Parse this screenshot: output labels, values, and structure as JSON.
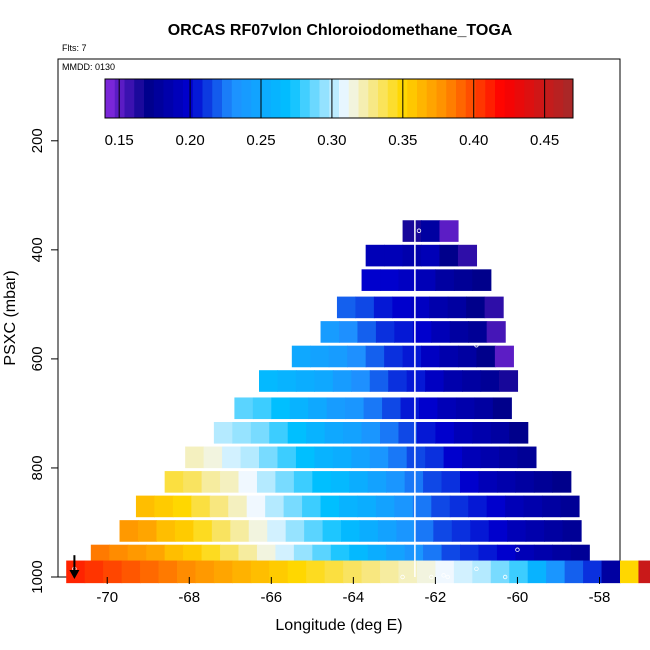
{
  "chart_data": {
    "type": "heatmap",
    "title": "ORCAS RF07vlon Chloroiodomethane_TOGA",
    "flts_label": "Flts: 7",
    "mmdd_label": "MMDD: 0130",
    "xlabel": "Longitude (deg E)",
    "ylabel": "PSXC (mbar)",
    "xlim": [
      -71.2,
      -57.5
    ],
    "ylim": [
      1000,
      50
    ],
    "y_inverted": true,
    "x_ticks": [
      -70,
      -68,
      -66,
      -64,
      -62,
      -60,
      -58
    ],
    "y_ticks": [
      200,
      400,
      600,
      800,
      1000
    ],
    "grid": false,
    "colorbar": {
      "placement": "top-inside",
      "range": [
        0.14,
        0.47
      ],
      "ticks": [
        0.15,
        0.2,
        0.25,
        0.3,
        0.35,
        0.4,
        0.45
      ],
      "tick_labels": [
        "0.15",
        "0.20",
        "0.25",
        "0.30",
        "0.35",
        "0.40",
        "0.45"
      ],
      "stops": [
        {
          "v": 0.14,
          "color": "#8a2be2"
        },
        {
          "v": 0.17,
          "color": "#00008b"
        },
        {
          "v": 0.2,
          "color": "#0000cd"
        },
        {
          "v": 0.23,
          "color": "#1e90ff"
        },
        {
          "v": 0.27,
          "color": "#00bfff"
        },
        {
          "v": 0.31,
          "color": "#f0f8ff"
        },
        {
          "v": 0.35,
          "color": "#ffd700"
        },
        {
          "v": 0.38,
          "color": "#ff8c00"
        },
        {
          "v": 0.42,
          "color": "#ff0000"
        },
        {
          "v": 0.47,
          "color": "#a52a2a"
        }
      ]
    },
    "vertical_line_x": -62.5,
    "ground_marker_x": -70.8,
    "cells": {
      "x_step": 0.45,
      "x_left_edge": -62.8,
      "rows": [
        {
          "p": 365,
          "x_start": -62.8,
          "values": [
            0.165,
            0.18,
            0.15
          ]
        },
        {
          "p": 410,
          "x_start": -63.7,
          "values": [
            0.19,
            0.19,
            0.185,
            0.19,
            0.17,
            0.16
          ]
        },
        {
          "p": 455,
          "x_start": -63.8,
          "values": [
            0.2,
            0.2,
            0.195,
            0.19,
            0.18,
            0.175,
            0.17
          ]
        },
        {
          "p": 505,
          "x_start": -64.4,
          "values": [
            0.22,
            0.215,
            0.205,
            0.2,
            0.195,
            0.185,
            0.18,
            0.17,
            0.16
          ]
        },
        {
          "p": 550,
          "x_start": -64.8,
          "values": [
            0.24,
            0.23,
            0.22,
            0.21,
            0.205,
            0.2,
            0.19,
            0.18,
            0.175,
            0.155
          ]
        },
        {
          "p": 595,
          "x_start": -65.5,
          "values": [
            0.25,
            0.245,
            0.24,
            0.23,
            0.22,
            0.21,
            0.205,
            0.195,
            0.185,
            0.18,
            0.17,
            0.15
          ]
        },
        {
          "p": 640,
          "x_start": -66.3,
          "values": [
            0.265,
            0.26,
            0.255,
            0.25,
            0.24,
            0.23,
            0.22,
            0.21,
            0.205,
            0.195,
            0.185,
            0.18,
            0.175,
            0.165
          ]
        },
        {
          "p": 690,
          "x_start": -66.9,
          "values": [
            0.285,
            0.28,
            0.27,
            0.26,
            0.25,
            0.24,
            0.235,
            0.225,
            0.215,
            0.205,
            0.2,
            0.19,
            0.185,
            0.18,
            0.17
          ]
        },
        {
          "p": 735,
          "x_start": -67.4,
          "values": [
            0.3,
            0.295,
            0.29,
            0.28,
            0.27,
            0.26,
            0.25,
            0.245,
            0.235,
            0.225,
            0.215,
            0.205,
            0.2,
            0.19,
            0.185,
            0.18,
            0.17
          ]
        },
        {
          "p": 780,
          "x_start": -68.1,
          "values": [
            0.32,
            0.315,
            0.305,
            0.3,
            0.29,
            0.28,
            0.27,
            0.26,
            0.255,
            0.245,
            0.235,
            0.225,
            0.215,
            0.21,
            0.2,
            0.19,
            0.185,
            0.18,
            0.175
          ]
        },
        {
          "p": 825,
          "x_start": -68.6,
          "values": [
            0.34,
            0.335,
            0.325,
            0.32,
            0.31,
            0.3,
            0.29,
            0.28,
            0.27,
            0.265,
            0.255,
            0.245,
            0.235,
            0.225,
            0.215,
            0.21,
            0.2,
            0.19,
            0.185,
            0.18,
            0.175,
            0.17
          ]
        },
        {
          "p": 870,
          "x_start": -69.3,
          "values": [
            0.36,
            0.355,
            0.35,
            0.34,
            0.33,
            0.32,
            0.31,
            0.3,
            0.29,
            0.28,
            0.27,
            0.26,
            0.255,
            0.245,
            0.235,
            0.225,
            0.215,
            0.21,
            0.205,
            0.2,
            0.19,
            0.185,
            0.18,
            0.175
          ]
        },
        {
          "p": 915,
          "x_start": -69.7,
          "values": [
            0.375,
            0.37,
            0.36,
            0.355,
            0.345,
            0.335,
            0.325,
            0.315,
            0.305,
            0.295,
            0.285,
            0.275,
            0.265,
            0.255,
            0.245,
            0.235,
            0.225,
            0.215,
            0.21,
            0.205,
            0.2,
            0.19,
            0.185,
            0.18,
            0.175
          ]
        },
        {
          "p": 960,
          "x_start": -70.4,
          "values": [
            0.385,
            0.38,
            0.375,
            0.37,
            0.36,
            0.355,
            0.345,
            0.335,
            0.325,
            0.315,
            0.305,
            0.295,
            0.285,
            0.275,
            0.265,
            0.255,
            0.245,
            0.235,
            0.225,
            0.215,
            0.21,
            0.205,
            0.2,
            0.19,
            0.185,
            0.18,
            0.175
          ]
        },
        {
          "p": 990,
          "x_start": -71.0,
          "values": [
            0.41,
            0.405,
            0.4,
            0.395,
            0.39,
            0.385,
            0.38,
            0.375,
            0.37,
            0.365,
            0.36,
            0.355,
            0.35,
            0.345,
            0.34,
            0.335,
            0.33,
            0.325,
            0.32,
            0.315,
            0.31,
            0.305,
            0.3,
            0.29,
            0.28,
            0.26,
            0.235,
            0.22,
            0.21,
            0.18,
            0.35,
            0.45,
            0.36,
            0.24,
            0.16
          ]
        }
      ]
    },
    "point_markers": [
      {
        "x": -62.4,
        "p": 365
      },
      {
        "x": -61.0,
        "p": 575
      },
      {
        "x": -62.8,
        "p": 1000
      },
      {
        "x": -62.1,
        "p": 1000
      },
      {
        "x": -61.8,
        "p": 997
      },
      {
        "x": -61.7,
        "p": 1000
      },
      {
        "x": -61.0,
        "p": 985
      },
      {
        "x": -60.3,
        "p": 1000
      },
      {
        "x": -60.0,
        "p": 950
      },
      {
        "x": -70.8,
        "p": 985
      }
    ]
  }
}
